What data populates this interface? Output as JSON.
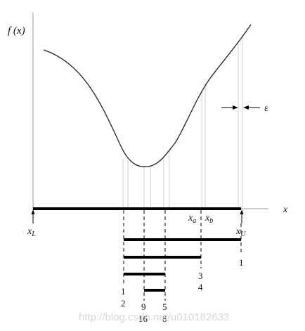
{
  "labels": {
    "f_label": "f (x)",
    "x_axis": "x",
    "x_L": "x",
    "x_L_sub": "L",
    "x_U": "x",
    "x_U_sub": "U",
    "x_a": "x",
    "x_a_sub": "a",
    "x_b": "x",
    "x_b_sub": "b",
    "epsilon": "ε"
  },
  "iteration_labels": {
    "n1": "1",
    "n2": "2",
    "n3": "3",
    "n4": "4",
    "n5": "5",
    "n8": "8",
    "n9": "9",
    "n16": "16",
    "n1_right": "1"
  },
  "watermark": "http://blog.csdn.net/u010182633"
}
